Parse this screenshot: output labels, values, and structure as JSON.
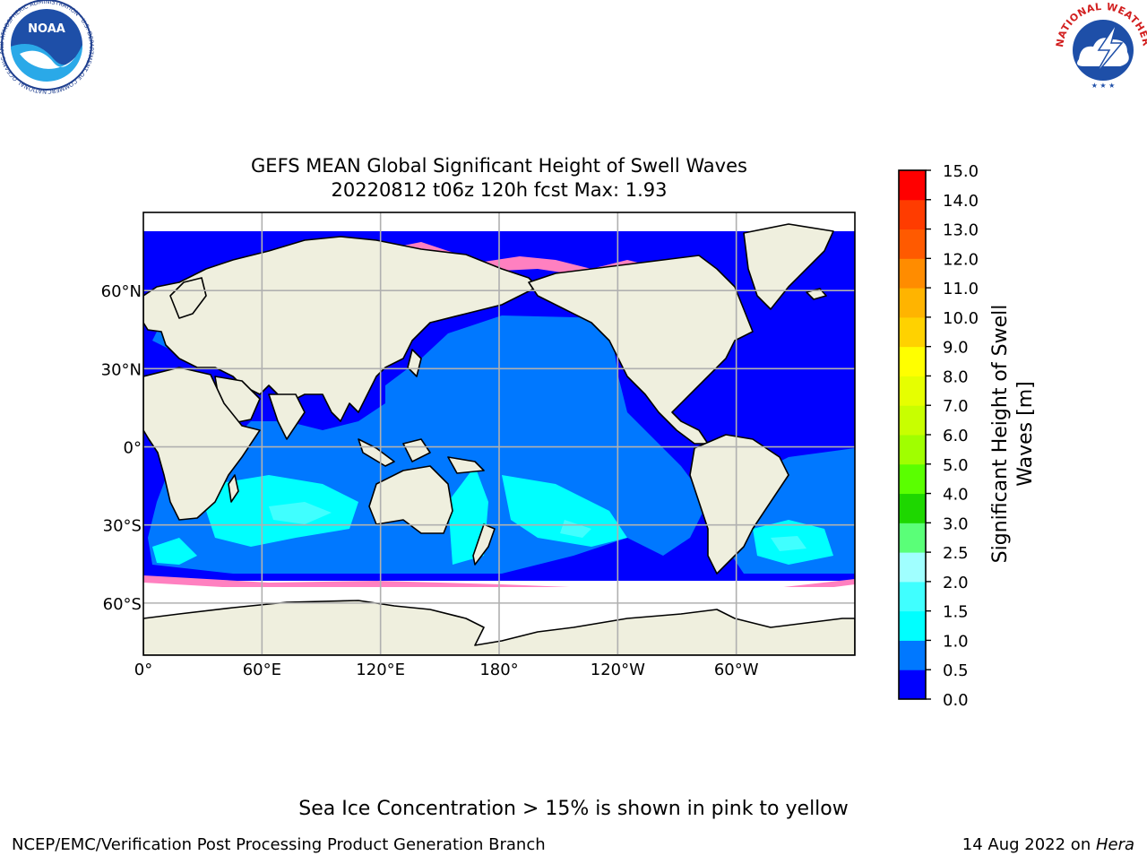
{
  "title": {
    "line1": "GEFS MEAN Global Significant Height of Swell Waves",
    "line2": "20220812 t06z 120h fcst   Max: 1.93"
  },
  "map": {
    "projection": "equirectangular",
    "longitude_range_east": [
      0,
      360
    ],
    "latitude_range": [
      -80,
      90
    ],
    "gridlines": true,
    "x_ticks": [
      {
        "lon": 0,
        "label": "0°"
      },
      {
        "lon": 60,
        "label": "60°E"
      },
      {
        "lon": 120,
        "label": "120°E"
      },
      {
        "lon": 180,
        "label": "180°"
      },
      {
        "lon": 240,
        "label": "120°W"
      },
      {
        "lon": 300,
        "label": "60°W"
      }
    ],
    "y_ticks": [
      {
        "lat": 60,
        "label": "60°N"
      },
      {
        "lat": 30,
        "label": "30°N"
      },
      {
        "lat": 0,
        "label": "0°"
      },
      {
        "lat": -30,
        "label": "30°S"
      },
      {
        "lat": -60,
        "label": "60°S"
      }
    ],
    "colors": {
      "land": "#efefde",
      "ice_free_background": "#ffffff",
      "grid": "#b0b0b0",
      "coast": "#000000",
      "sea_ice_pink": "#ff80c0",
      "sea_ice_light": "#ffb0b0"
    }
  },
  "colorbar": {
    "label": "Significant Height of Swell Waves [m]",
    "label_line1": "Significant Height of Swell",
    "label_line2": "Waves [m]",
    "bounds": [
      0.0,
      0.5,
      1.0,
      1.5,
      2.0,
      2.5,
      3.0,
      4.0,
      5.0,
      6.0,
      7.0,
      8.0,
      9.0,
      10.0,
      11.0,
      12.0,
      13.0,
      14.0,
      15.0
    ],
    "tick_labels": [
      "0.0",
      "0.5",
      "1.0",
      "1.5",
      "2.0",
      "2.5",
      "3.0",
      "4.0",
      "5.0",
      "6.0",
      "7.0",
      "8.0",
      "9.0",
      "10.0",
      "11.0",
      "12.0",
      "13.0",
      "14.0",
      "15.0"
    ],
    "colors": [
      "#0000ff",
      "#0078ff",
      "#00ffff",
      "#40ffff",
      "#a0ffff",
      "#5aff78",
      "#1ed700",
      "#5aff00",
      "#a0ff00",
      "#c8ff00",
      "#e6ff00",
      "#ffff00",
      "#ffd200",
      "#ffb400",
      "#ff8c00",
      "#ff5a00",
      "#ff3c00",
      "#ff0000"
    ]
  },
  "ice_note": "Sea Ice Concentration > 15% is shown in pink to yellow",
  "footer": {
    "left": "NCEP/EMC/Verification Post Processing Product Generation Branch",
    "right_date": "14 Aug 2022 on ",
    "right_host": "Hera"
  },
  "logos": {
    "noaa_text": "NOAA",
    "noaa_ring_text": "NATIONAL OCEANIC AND ATMOSPHERIC ADMINISTRATION · U.S. DEPARTMENT OF COMMERCE ·",
    "nws_ring_text": "NATIONAL WEATHER SERVICE"
  }
}
